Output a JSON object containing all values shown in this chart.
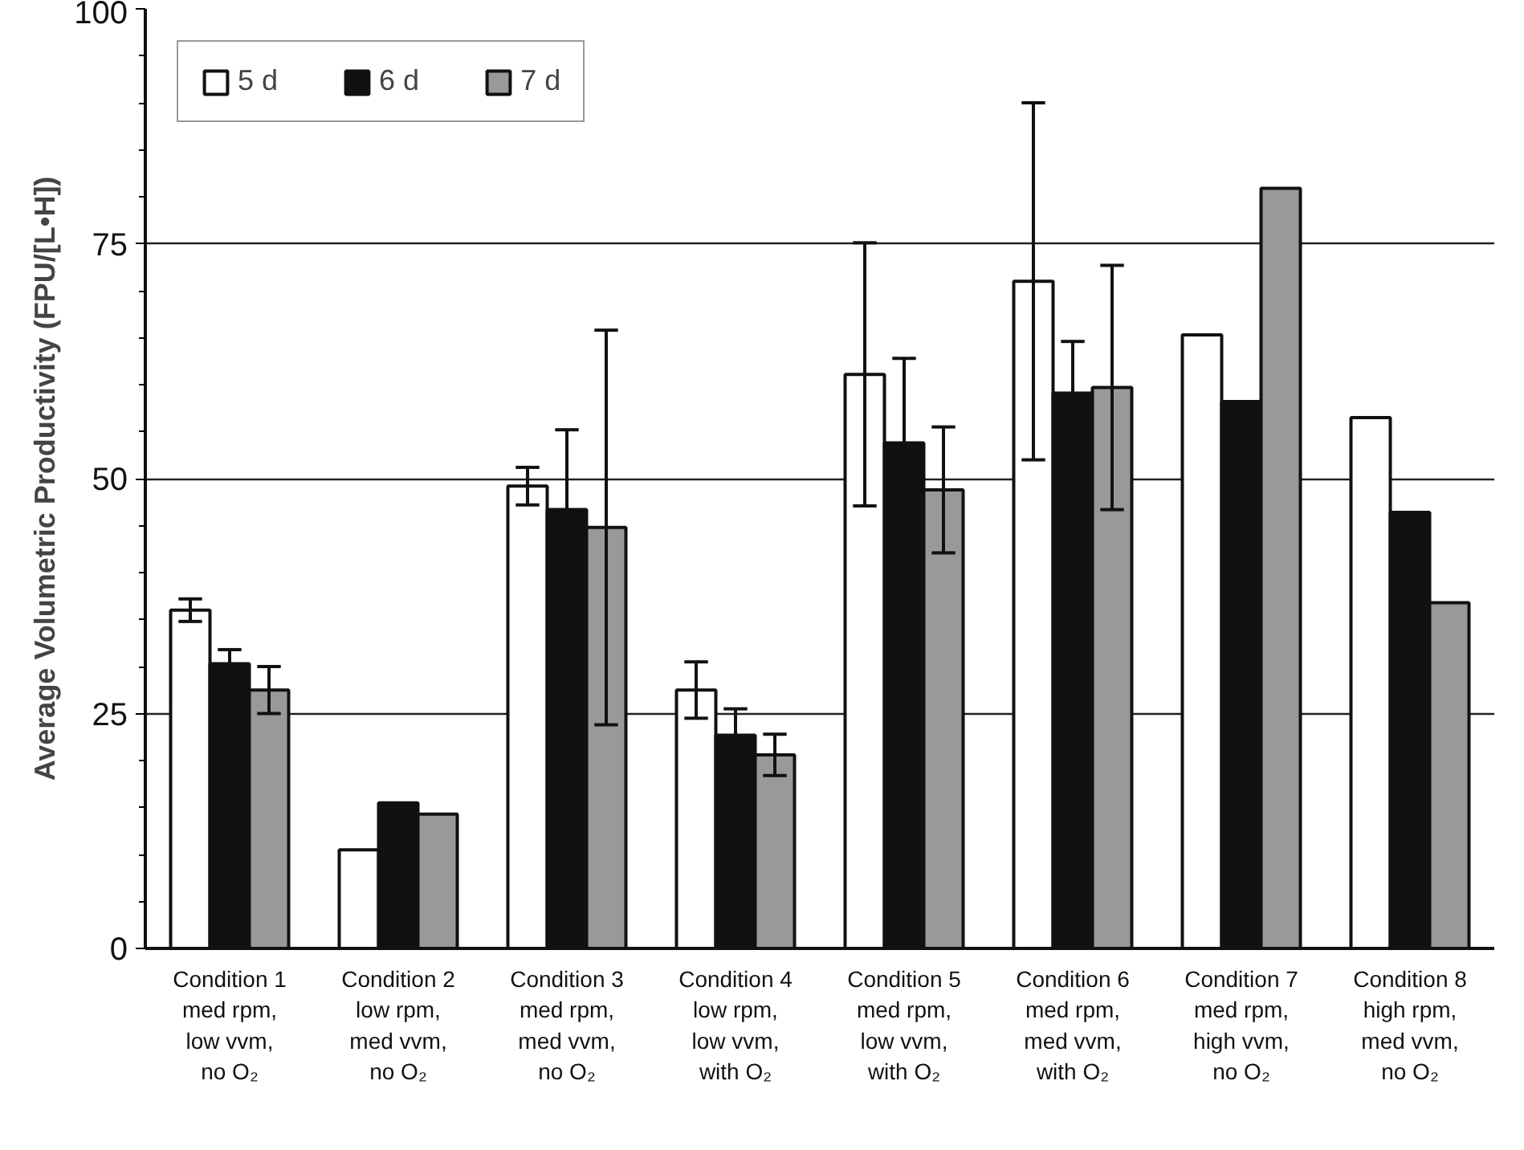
{
  "chart_data": {
    "type": "bar",
    "ylabel": "Average Volumetric Productivity (FPU/[L•H])",
    "categories": [
      "Condition 1\nmed rpm,\nlow vvm,\nno O₂",
      "Condition 2\nlow rpm,\nmed vvm,\nno O₂",
      "Condition 3\nmed rpm,\nmed vvm,\nno O₂",
      "Condition 4\nlow rpm,\nlow vvm,\nwith O₂",
      "Condition 5\nmed rpm,\nlow vvm,\nwith O₂",
      "Condition 6\nmed rpm,\nmed vvm,\nwith O₂",
      "Condition 7\nmed rpm,\nhigh vvm,\nno O₂",
      "Condition 8\nhigh rpm,\nmed vvm,\nno O₂"
    ],
    "series": [
      {
        "name": "5 d",
        "color": "#ffffff",
        "values": [
          36,
          10.5,
          49.2,
          27.5,
          61.1,
          71,
          65.3,
          56.5
        ],
        "errors": [
          1.2,
          null,
          2,
          3,
          14,
          19,
          null,
          null
        ]
      },
      {
        "name": "6 d",
        "color": "#111111",
        "values": [
          30.3,
          15.5,
          46.7,
          22.7,
          53.8,
          59.1,
          58.2,
          46.4
        ],
        "errors": [
          1.5,
          null,
          8.5,
          2.8,
          9,
          5.5,
          null,
          null
        ]
      },
      {
        "name": "7 d",
        "color": "#999999",
        "values": [
          27.5,
          14.3,
          44.8,
          20.6,
          48.8,
          59.7,
          80.9,
          36.8
        ],
        "errors": [
          2.5,
          null,
          21,
          2.2,
          6.7,
          13,
          null,
          null
        ]
      }
    ],
    "ylim": [
      0,
      100
    ],
    "yticks": [
      0,
      25,
      50,
      75,
      100
    ],
    "grid": "y",
    "legend": "top left"
  }
}
